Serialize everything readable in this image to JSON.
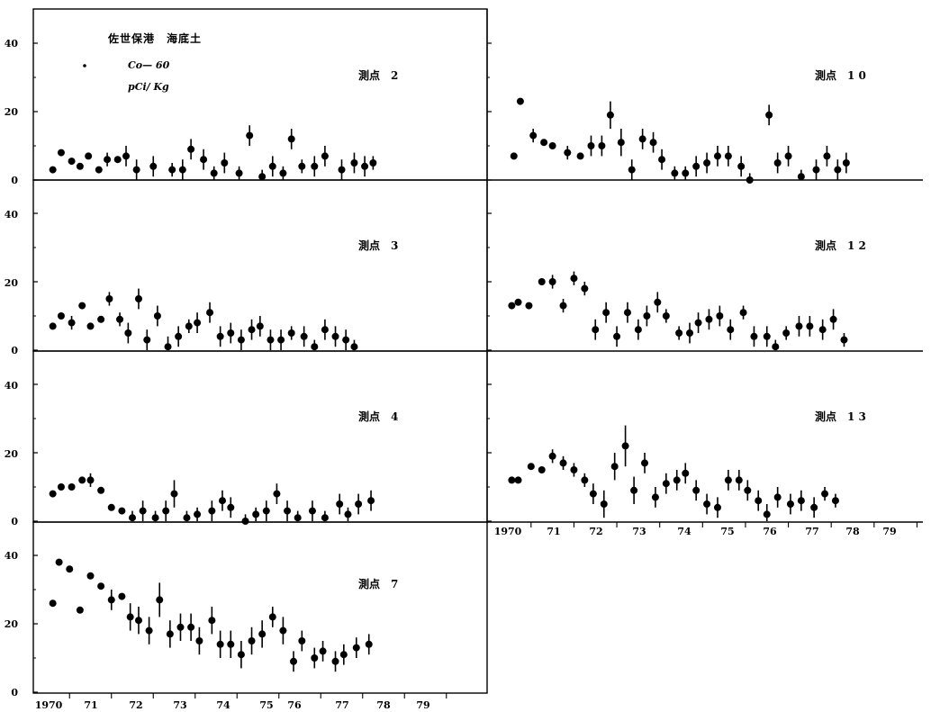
{
  "legend": {
    "title": "佐世保港　海底土",
    "nuclide": "Co— 60",
    "unit": "pCi/ Kg"
  },
  "y_ticks": [
    "0",
    "20",
    "40"
  ],
  "x_ticks": [
    "1970",
    "71",
    "72",
    "73",
    "74",
    "75",
    "76",
    "77",
    "78",
    "79"
  ],
  "colors": {
    "ink": "#000000",
    "background": "#ffffff"
  },
  "chart_data": [
    {
      "type": "scatter",
      "panel": "left-1",
      "station": "測点　2",
      "xlim": [
        1970,
        1980
      ],
      "ylim": [
        0,
        50
      ],
      "points": [
        {
          "x": 1970.1,
          "y": 3
        },
        {
          "x": 1970.3,
          "y": 8
        },
        {
          "x": 1970.55,
          "y": 5.5
        },
        {
          "x": 1970.75,
          "y": 4
        },
        {
          "x": 1970.95,
          "y": 7
        },
        {
          "x": 1971.2,
          "y": 3
        },
        {
          "x": 1971.4,
          "y": 6,
          "err": 2
        },
        {
          "x": 1971.65,
          "y": 6
        },
        {
          "x": 1971.85,
          "y": 7,
          "err": 3
        },
        {
          "x": 1972.1,
          "y": 3,
          "err": 3
        },
        {
          "x": 1972.5,
          "y": 4,
          "err": 3
        },
        {
          "x": 1972.95,
          "y": 3,
          "err": 2
        },
        {
          "x": 1973.2,
          "y": 3,
          "err": 3
        },
        {
          "x": 1973.4,
          "y": 9,
          "err": 3
        },
        {
          "x": 1973.7,
          "y": 6,
          "err": 3
        },
        {
          "x": 1973.95,
          "y": 2,
          "err": 2
        },
        {
          "x": 1974.2,
          "y": 5,
          "err": 3
        },
        {
          "x": 1974.55,
          "y": 2,
          "err": 2
        },
        {
          "x": 1974.8,
          "y": 13,
          "err": 3
        },
        {
          "x": 1975.1,
          "y": 1,
          "err": 2
        },
        {
          "x": 1975.35,
          "y": 4,
          "err": 3
        },
        {
          "x": 1975.6,
          "y": 2,
          "err": 2
        },
        {
          "x": 1975.8,
          "y": 12,
          "err": 3
        },
        {
          "x": 1976.05,
          "y": 4,
          "err": 2
        },
        {
          "x": 1976.35,
          "y": 4,
          "err": 3
        },
        {
          "x": 1976.6,
          "y": 7,
          "err": 3
        },
        {
          "x": 1977.0,
          "y": 3,
          "err": 3
        },
        {
          "x": 1977.3,
          "y": 5,
          "err": 3
        },
        {
          "x": 1977.55,
          "y": 4,
          "err": 3
        },
        {
          "x": 1977.75,
          "y": 5,
          "err": 2
        }
      ]
    },
    {
      "type": "scatter",
      "panel": "left-2",
      "station": "測点　3",
      "xlim": [
        1970,
        1980
      ],
      "ylim": [
        0,
        50
      ],
      "points": [
        {
          "x": 1970.1,
          "y": 7
        },
        {
          "x": 1970.3,
          "y": 10
        },
        {
          "x": 1970.55,
          "y": 8,
          "err": 2
        },
        {
          "x": 1970.8,
          "y": 13
        },
        {
          "x": 1971.0,
          "y": 7
        },
        {
          "x": 1971.25,
          "y": 9
        },
        {
          "x": 1971.45,
          "y": 15,
          "err": 2
        },
        {
          "x": 1971.7,
          "y": 9,
          "err": 2
        },
        {
          "x": 1971.9,
          "y": 5,
          "err": 3
        },
        {
          "x": 1972.15,
          "y": 15,
          "err": 3
        },
        {
          "x": 1972.35,
          "y": 3,
          "err": 3
        },
        {
          "x": 1972.6,
          "y": 10,
          "err": 3
        },
        {
          "x": 1972.85,
          "y": 1,
          "err": 3
        },
        {
          "x": 1973.1,
          "y": 4,
          "err": 3
        },
        {
          "x": 1973.35,
          "y": 7,
          "err": 2
        },
        {
          "x": 1973.55,
          "y": 8,
          "err": 3
        },
        {
          "x": 1973.85,
          "y": 11,
          "err": 3
        },
        {
          "x": 1974.1,
          "y": 4,
          "err": 3
        },
        {
          "x": 1974.35,
          "y": 5,
          "err": 3
        },
        {
          "x": 1974.6,
          "y": 3,
          "err": 3
        },
        {
          "x": 1974.85,
          "y": 6,
          "err": 3
        },
        {
          "x": 1975.05,
          "y": 7,
          "err": 3
        },
        {
          "x": 1975.3,
          "y": 3,
          "err": 3
        },
        {
          "x": 1975.55,
          "y": 3,
          "err": 3
        },
        {
          "x": 1975.8,
          "y": 5,
          "err": 2
        },
        {
          "x": 1976.1,
          "y": 4,
          "err": 3
        },
        {
          "x": 1976.35,
          "y": 1,
          "err": 2
        },
        {
          "x": 1976.6,
          "y": 6,
          "err": 3
        },
        {
          "x": 1976.85,
          "y": 4,
          "err": 3
        },
        {
          "x": 1977.1,
          "y": 3,
          "err": 3
        },
        {
          "x": 1977.3,
          "y": 1,
          "err": 2
        }
      ]
    },
    {
      "type": "scatter",
      "panel": "left-3",
      "station": "測点　4",
      "xlim": [
        1970,
        1980
      ],
      "ylim": [
        0,
        50
      ],
      "points": [
        {
          "x": 1970.1,
          "y": 8
        },
        {
          "x": 1970.3,
          "y": 10
        },
        {
          "x": 1970.55,
          "y": 10
        },
        {
          "x": 1970.8,
          "y": 12
        },
        {
          "x": 1971.0,
          "y": 12,
          "err": 2
        },
        {
          "x": 1971.25,
          "y": 9
        },
        {
          "x": 1971.5,
          "y": 4
        },
        {
          "x": 1971.75,
          "y": 3
        },
        {
          "x": 1972.0,
          "y": 1,
          "err": 2
        },
        {
          "x": 1972.25,
          "y": 3,
          "err": 3
        },
        {
          "x": 1972.55,
          "y": 1,
          "err": 2
        },
        {
          "x": 1972.8,
          "y": 3,
          "err": 3
        },
        {
          "x": 1973.0,
          "y": 8,
          "err": 4
        },
        {
          "x": 1973.3,
          "y": 1,
          "err": 2
        },
        {
          "x": 1973.55,
          "y": 2,
          "err": 2
        },
        {
          "x": 1973.9,
          "y": 3,
          "err": 3
        },
        {
          "x": 1974.15,
          "y": 6,
          "err": 3
        },
        {
          "x": 1974.35,
          "y": 4,
          "err": 3
        },
        {
          "x": 1974.7,
          "y": 0,
          "err": 2
        },
        {
          "x": 1974.95,
          "y": 2,
          "err": 2
        },
        {
          "x": 1975.2,
          "y": 3,
          "err": 3
        },
        {
          "x": 1975.45,
          "y": 8,
          "err": 3
        },
        {
          "x": 1975.7,
          "y": 3,
          "err": 3
        },
        {
          "x": 1975.95,
          "y": 1,
          "err": 2
        },
        {
          "x": 1976.3,
          "y": 3,
          "err": 3
        },
        {
          "x": 1976.6,
          "y": 1,
          "err": 2
        },
        {
          "x": 1976.95,
          "y": 5,
          "err": 3
        },
        {
          "x": 1977.15,
          "y": 2,
          "err": 2
        },
        {
          "x": 1977.4,
          "y": 5,
          "err": 3
        },
        {
          "x": 1977.7,
          "y": 6,
          "err": 3
        }
      ]
    },
    {
      "type": "scatter",
      "panel": "left-4",
      "station": "測点　7",
      "xlim": [
        1970,
        1980
      ],
      "ylim": [
        0,
        45
      ],
      "points": [
        {
          "x": 1970.1,
          "y": 26
        },
        {
          "x": 1970.25,
          "y": 38
        },
        {
          "x": 1970.5,
          "y": 36
        },
        {
          "x": 1970.75,
          "y": 24
        },
        {
          "x": 1971.0,
          "y": 34
        },
        {
          "x": 1971.25,
          "y": 31
        },
        {
          "x": 1971.5,
          "y": 27,
          "err": 3
        },
        {
          "x": 1971.75,
          "y": 28
        },
        {
          "x": 1971.95,
          "y": 22,
          "err": 4
        },
        {
          "x": 1972.15,
          "y": 21,
          "err": 4
        },
        {
          "x": 1972.4,
          "y": 18,
          "err": 4
        },
        {
          "x": 1972.65,
          "y": 27,
          "err": 5
        },
        {
          "x": 1972.9,
          "y": 17,
          "err": 4
        },
        {
          "x": 1973.15,
          "y": 19,
          "err": 4
        },
        {
          "x": 1973.4,
          "y": 19,
          "err": 4
        },
        {
          "x": 1973.6,
          "y": 15,
          "err": 4
        },
        {
          "x": 1973.9,
          "y": 21,
          "err": 4
        },
        {
          "x": 1974.1,
          "y": 14,
          "err": 4
        },
        {
          "x": 1974.35,
          "y": 14,
          "err": 4
        },
        {
          "x": 1974.6,
          "y": 11,
          "err": 4
        },
        {
          "x": 1974.85,
          "y": 15,
          "err": 4
        },
        {
          "x": 1975.1,
          "y": 17,
          "err": 4
        },
        {
          "x": 1975.35,
          "y": 22,
          "err": 3
        },
        {
          "x": 1975.6,
          "y": 18,
          "err": 4
        },
        {
          "x": 1975.85,
          "y": 9,
          "err": 3
        },
        {
          "x": 1976.05,
          "y": 15,
          "err": 3
        },
        {
          "x": 1976.35,
          "y": 10,
          "err": 3
        },
        {
          "x": 1976.55,
          "y": 12,
          "err": 3
        },
        {
          "x": 1976.85,
          "y": 9,
          "err": 3
        },
        {
          "x": 1977.05,
          "y": 11,
          "err": 3
        },
        {
          "x": 1977.35,
          "y": 13,
          "err": 3
        },
        {
          "x": 1977.65,
          "y": 14,
          "err": 3
        }
      ]
    },
    {
      "type": "scatter",
      "panel": "right-1",
      "station": "測点　1 0",
      "xlim": [
        1970,
        1980
      ],
      "ylim": [
        0,
        50
      ],
      "points": [
        {
          "x": 1970.1,
          "y": 7
        },
        {
          "x": 1970.25,
          "y": 23
        },
        {
          "x": 1970.55,
          "y": 13,
          "err": 2
        },
        {
          "x": 1970.8,
          "y": 11
        },
        {
          "x": 1971.0,
          "y": 10
        },
        {
          "x": 1971.35,
          "y": 8,
          "err": 2
        },
        {
          "x": 1971.65,
          "y": 7
        },
        {
          "x": 1971.9,
          "y": 10,
          "err": 3
        },
        {
          "x": 1972.15,
          "y": 10,
          "err": 3
        },
        {
          "x": 1972.35,
          "y": 19,
          "err": 4
        },
        {
          "x": 1972.6,
          "y": 11,
          "err": 4
        },
        {
          "x": 1972.85,
          "y": 3,
          "err": 3
        },
        {
          "x": 1973.1,
          "y": 12,
          "err": 3
        },
        {
          "x": 1973.35,
          "y": 11,
          "err": 3
        },
        {
          "x": 1973.55,
          "y": 6,
          "err": 3
        },
        {
          "x": 1973.85,
          "y": 2,
          "err": 2
        },
        {
          "x": 1974.1,
          "y": 2,
          "err": 2
        },
        {
          "x": 1974.35,
          "y": 4,
          "err": 3
        },
        {
          "x": 1974.6,
          "y": 5,
          "err": 3
        },
        {
          "x": 1974.85,
          "y": 7,
          "err": 3
        },
        {
          "x": 1975.1,
          "y": 7,
          "err": 3
        },
        {
          "x": 1975.4,
          "y": 4,
          "err": 3
        },
        {
          "x": 1975.6,
          "y": 0,
          "err": 2
        },
        {
          "x": 1976.05,
          "y": 19,
          "err": 3
        },
        {
          "x": 1976.25,
          "y": 5,
          "err": 3
        },
        {
          "x": 1976.5,
          "y": 7,
          "err": 3
        },
        {
          "x": 1976.8,
          "y": 1,
          "err": 2
        },
        {
          "x": 1977.15,
          "y": 3,
          "err": 3
        },
        {
          "x": 1977.4,
          "y": 7,
          "err": 3
        },
        {
          "x": 1977.65,
          "y": 3,
          "err": 3
        },
        {
          "x": 1977.85,
          "y": 5,
          "err": 3
        }
      ]
    },
    {
      "type": "scatter",
      "panel": "right-2",
      "station": "測点　1 2",
      "xlim": [
        1970,
        1980
      ],
      "ylim": [
        0,
        50
      ],
      "points": [
        {
          "x": 1970.05,
          "y": 13
        },
        {
          "x": 1970.2,
          "y": 14
        },
        {
          "x": 1970.45,
          "y": 13
        },
        {
          "x": 1970.75,
          "y": 20
        },
        {
          "x": 1971.0,
          "y": 20,
          "err": 2
        },
        {
          "x": 1971.25,
          "y": 13,
          "err": 2
        },
        {
          "x": 1971.5,
          "y": 21,
          "err": 2
        },
        {
          "x": 1971.75,
          "y": 18,
          "err": 2
        },
        {
          "x": 1972.0,
          "y": 6,
          "err": 3
        },
        {
          "x": 1972.25,
          "y": 11,
          "err": 3
        },
        {
          "x": 1972.5,
          "y": 4,
          "err": 3
        },
        {
          "x": 1972.75,
          "y": 11,
          "err": 3
        },
        {
          "x": 1973.0,
          "y": 6,
          "err": 3
        },
        {
          "x": 1973.2,
          "y": 10,
          "err": 3
        },
        {
          "x": 1973.45,
          "y": 14,
          "err": 3
        },
        {
          "x": 1973.65,
          "y": 10,
          "err": 2
        },
        {
          "x": 1973.95,
          "y": 5,
          "err": 2
        },
        {
          "x": 1974.2,
          "y": 5,
          "err": 3
        },
        {
          "x": 1974.4,
          "y": 8,
          "err": 3
        },
        {
          "x": 1974.65,
          "y": 9,
          "err": 3
        },
        {
          "x": 1974.9,
          "y": 10,
          "err": 3
        },
        {
          "x": 1975.15,
          "y": 6,
          "err": 3
        },
        {
          "x": 1975.45,
          "y": 11,
          "err": 2
        },
        {
          "x": 1975.7,
          "y": 4,
          "err": 3
        },
        {
          "x": 1976.0,
          "y": 4,
          "err": 3
        },
        {
          "x": 1976.2,
          "y": 1,
          "err": 2
        },
        {
          "x": 1976.45,
          "y": 5,
          "err": 2
        },
        {
          "x": 1976.75,
          "y": 7,
          "err": 3
        },
        {
          "x": 1977.0,
          "y": 7,
          "err": 3
        },
        {
          "x": 1977.3,
          "y": 6,
          "err": 3
        },
        {
          "x": 1977.55,
          "y": 9,
          "err": 3
        },
        {
          "x": 1977.8,
          "y": 3,
          "err": 2
        }
      ]
    },
    {
      "type": "scatter",
      "panel": "right-3",
      "station": "測点　1 3",
      "xlim": [
        1970,
        1980
      ],
      "ylim": [
        0,
        50
      ],
      "points": [
        {
          "x": 1970.05,
          "y": 12
        },
        {
          "x": 1970.2,
          "y": 12
        },
        {
          "x": 1970.5,
          "y": 16
        },
        {
          "x": 1970.75,
          "y": 15
        },
        {
          "x": 1971.0,
          "y": 19,
          "err": 2
        },
        {
          "x": 1971.25,
          "y": 17,
          "err": 2
        },
        {
          "x": 1971.5,
          "y": 15,
          "err": 2
        },
        {
          "x": 1971.75,
          "y": 12,
          "err": 2
        },
        {
          "x": 1971.95,
          "y": 8,
          "err": 3
        },
        {
          "x": 1972.2,
          "y": 5,
          "err": 4
        },
        {
          "x": 1972.45,
          "y": 16,
          "err": 4
        },
        {
          "x": 1972.7,
          "y": 22,
          "err": 6
        },
        {
          "x": 1972.9,
          "y": 9,
          "err": 4
        },
        {
          "x": 1973.15,
          "y": 17,
          "err": 3
        },
        {
          "x": 1973.4,
          "y": 7,
          "err": 3
        },
        {
          "x": 1973.65,
          "y": 11,
          "err": 3
        },
        {
          "x": 1973.9,
          "y": 12,
          "err": 3
        },
        {
          "x": 1974.1,
          "y": 14,
          "err": 3
        },
        {
          "x": 1974.35,
          "y": 9,
          "err": 3
        },
        {
          "x": 1974.6,
          "y": 5,
          "err": 3
        },
        {
          "x": 1974.85,
          "y": 4,
          "err": 3
        },
        {
          "x": 1975.1,
          "y": 12,
          "err": 3
        },
        {
          "x": 1975.35,
          "y": 12,
          "err": 3
        },
        {
          "x": 1975.55,
          "y": 9,
          "err": 3
        },
        {
          "x": 1975.8,
          "y": 6,
          "err": 3
        },
        {
          "x": 1976.0,
          "y": 2,
          "err": 3
        },
        {
          "x": 1976.25,
          "y": 7,
          "err": 3
        },
        {
          "x": 1976.55,
          "y": 5,
          "err": 3
        },
        {
          "x": 1976.8,
          "y": 6,
          "err": 3
        },
        {
          "x": 1977.1,
          "y": 4,
          "err": 3
        },
        {
          "x": 1977.35,
          "y": 8,
          "err": 2
        },
        {
          "x": 1977.6,
          "y": 6,
          "err": 2
        }
      ]
    }
  ]
}
